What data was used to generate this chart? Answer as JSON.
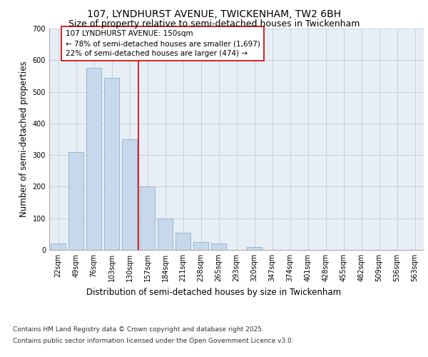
{
  "title_line1": "107, LYNDHURST AVENUE, TWICKENHAM, TW2 6BH",
  "title_line2": "Size of property relative to semi-detached houses in Twickenham",
  "xlabel": "Distribution of semi-detached houses by size in Twickenham",
  "ylabel": "Number of semi-detached properties",
  "categories": [
    "22sqm",
    "49sqm",
    "76sqm",
    "103sqm",
    "130sqm",
    "157sqm",
    "184sqm",
    "211sqm",
    "238sqm",
    "265sqm",
    "293sqm",
    "320sqm",
    "347sqm",
    "374sqm",
    "401sqm",
    "428sqm",
    "455sqm",
    "482sqm",
    "509sqm",
    "536sqm",
    "563sqm"
  ],
  "values": [
    20,
    310,
    575,
    545,
    350,
    200,
    100,
    55,
    25,
    20,
    0,
    10,
    0,
    0,
    0,
    0,
    0,
    0,
    0,
    0,
    0
  ],
  "bar_color": "#c8d8ec",
  "bar_edge_color": "#8ab0cc",
  "subject_line_color": "#cc0000",
  "subject_label": "107 LYNDHURST AVENUE: 150sqm",
  "annotation_smaller": "← 78% of semi-detached houses are smaller (1,697)",
  "annotation_larger": "22% of semi-detached houses are larger (474) →",
  "annotation_box_color": "#ffffff",
  "annotation_box_edge_color": "#cc0000",
  "ylim": [
    0,
    700
  ],
  "yticks": [
    0,
    100,
    200,
    300,
    400,
    500,
    600,
    700
  ],
  "grid_color": "#c0ccd8",
  "background_color": "#e8eef6",
  "footer_line1": "Contains HM Land Registry data © Crown copyright and database right 2025.",
  "footer_line2": "Contains public sector information licensed under the Open Government Licence v3.0.",
  "title_fontsize": 10,
  "subtitle_fontsize": 9,
  "axis_label_fontsize": 8.5,
  "tick_fontsize": 7,
  "annotation_fontsize": 7.5,
  "footer_fontsize": 6.5
}
